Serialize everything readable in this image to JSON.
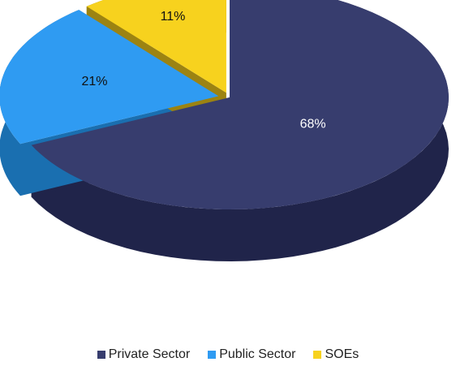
{
  "chart_data": {
    "type": "pie",
    "title": "",
    "categories": [
      "Private Sector",
      "Public Sector",
      "SOEs"
    ],
    "values": [
      68,
      21,
      11
    ],
    "labels": [
      "68%",
      "21%",
      "11%"
    ],
    "colors": [
      "#373D6E",
      "#2F9BF2",
      "#F7D21E"
    ],
    "side_colors": [
      "#20244A",
      "#1A6FB0",
      "#9C8312"
    ],
    "label_colors": [
      "#FFFFFF",
      "#111111",
      "#111111"
    ],
    "legend_position": "bottom",
    "style": "3d-exploded"
  },
  "legend": {
    "items": [
      {
        "label": "Private Sector",
        "color": "#373D6E"
      },
      {
        "label": "Public Sector",
        "color": "#2F9BF2"
      },
      {
        "label": "SOEs",
        "color": "#F7D21E"
      }
    ]
  }
}
